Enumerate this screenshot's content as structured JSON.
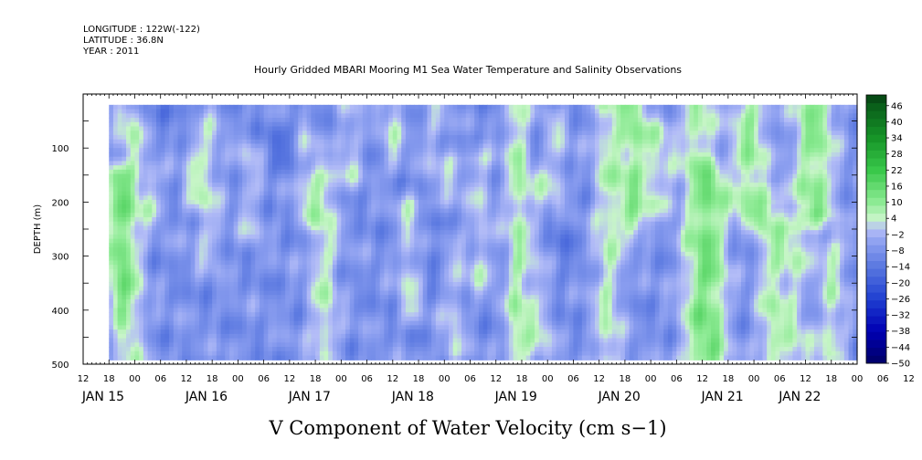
{
  "header": {
    "longitude": "LONGITUDE : 122W(-122)",
    "latitude": "LATITUDE : 36.8N",
    "year": "YEAR : 2011"
  },
  "chart_data": {
    "type": "heatmap",
    "title": "Hourly Gridded MBARI Mooring M1 Sea Water Temperature and Salinity Observations",
    "subtitle": "V Component of Water Velocity (cm s−1)",
    "ylabel": "DEPTH (m)",
    "ylim": [
      500,
      0
    ],
    "y_reversed": true,
    "y_ticks": [
      100,
      200,
      300,
      400,
      500
    ],
    "data_depth_range": [
      20,
      490
    ],
    "x_range_hours": [
      0,
      180
    ],
    "data_start_hour": 6,
    "x_hour_labels": [
      "12",
      "18",
      "00",
      "06",
      "12",
      "18",
      "00",
      "06",
      "12",
      "18",
      "00",
      "06",
      "12",
      "18",
      "00",
      "06",
      "12",
      "18",
      "00",
      "06",
      "12",
      "18",
      "00",
      "06",
      "12",
      "18",
      "00",
      "06",
      "12",
      "18",
      "00",
      "06",
      "12"
    ],
    "x_date_labels": [
      {
        "label": "JAN 15",
        "hour": 0
      },
      {
        "label": "JAN 16",
        "hour": 24
      },
      {
        "label": "JAN 17",
        "hour": 48
      },
      {
        "label": "JAN 18",
        "hour": 72
      },
      {
        "label": "JAN 19",
        "hour": 96
      },
      {
        "label": "JAN 20",
        "hour": 120
      },
      {
        "label": "JAN 21",
        "hour": 144
      },
      {
        "label": "JAN 22",
        "hour": 162
      }
    ],
    "colorbar": {
      "min": -50,
      "max": 50,
      "labels": [
        "46",
        "40",
        "34",
        "28",
        "22",
        "16",
        "10",
        "4",
        "-2",
        "-8",
        "-14",
        "-20",
        "-26",
        "-32",
        "-38",
        "-44",
        "-50"
      ],
      "label_values": [
        46,
        40,
        34,
        28,
        22,
        16,
        10,
        4,
        -2,
        -8,
        -14,
        -20,
        -26,
        -32,
        -38,
        -44,
        -50
      ],
      "colors": [
        {
          "v": -50,
          "c": "#000066"
        },
        {
          "v": -38,
          "c": "#0000b3"
        },
        {
          "v": -26,
          "c": "#1f3fd1"
        },
        {
          "v": -14,
          "c": "#5a78e0"
        },
        {
          "v": -5,
          "c": "#8c9ff0"
        },
        {
          "v": 0,
          "c": "#b4bdf7"
        },
        {
          "v": 4,
          "c": "#c7f5c7"
        },
        {
          "v": 10,
          "c": "#8eeb95"
        },
        {
          "v": 22,
          "c": "#39c84a"
        },
        {
          "v": 34,
          "c": "#169428"
        },
        {
          "v": 46,
          "c": "#0a5e1a"
        },
        {
          "v": 50,
          "c": "#064012"
        }
      ]
    },
    "field_description": "mostly weak negative (light blue, about -5 to -15 cm/s) with vertical green bands (+4 to +20 cm/s), strongest positive near the surface on Jan 20-22"
  }
}
